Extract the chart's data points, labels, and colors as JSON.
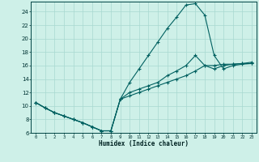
{
  "xlabel": "Humidex (Indice chaleur)",
  "bg_color": "#cef0e8",
  "grid_color": "#a8d8d0",
  "line_color": "#006060",
  "xlim": [
    -0.5,
    23.5
  ],
  "ylim": [
    6,
    25.5
  ],
  "xticks": [
    0,
    1,
    2,
    3,
    4,
    5,
    6,
    7,
    8,
    9,
    10,
    11,
    12,
    13,
    14,
    15,
    16,
    17,
    18,
    19,
    20,
    21,
    22,
    23
  ],
  "yticks": [
    6,
    8,
    10,
    12,
    14,
    16,
    18,
    20,
    22,
    24
  ],
  "line1_x": [
    0,
    1,
    2,
    3,
    4,
    5,
    6,
    7,
    8,
    9,
    10,
    11,
    12,
    13,
    14,
    15,
    16,
    17,
    18,
    19,
    20,
    21,
    22,
    23
  ],
  "line1_y": [
    10.5,
    9.7,
    9.0,
    8.5,
    8.0,
    7.5,
    6.9,
    6.3,
    6.3,
    11.0,
    13.5,
    15.5,
    17.5,
    19.5,
    21.5,
    23.2,
    25.0,
    25.2,
    23.5,
    17.5,
    15.5,
    16.0,
    16.2,
    16.3
  ],
  "line2_x": [
    0,
    1,
    2,
    3,
    4,
    5,
    6,
    7,
    8,
    9,
    10,
    11,
    12,
    13,
    14,
    15,
    16,
    17,
    18,
    19,
    20,
    21,
    22,
    23
  ],
  "line2_y": [
    10.5,
    9.7,
    9.0,
    8.5,
    8.0,
    7.5,
    6.9,
    6.3,
    6.3,
    11.0,
    11.5,
    12.0,
    12.5,
    13.0,
    13.5,
    14.0,
    14.5,
    15.2,
    16.0,
    16.0,
    16.2,
    16.2,
    16.3,
    16.3
  ],
  "line3_x": [
    0,
    1,
    2,
    3,
    4,
    5,
    6,
    7,
    8,
    9,
    10,
    11,
    12,
    13,
    14,
    15,
    16,
    17,
    18,
    19,
    20,
    21,
    22,
    23
  ],
  "line3_y": [
    10.5,
    9.7,
    9.0,
    8.5,
    8.0,
    7.5,
    6.9,
    6.3,
    6.3,
    11.0,
    12.0,
    12.5,
    13.0,
    13.5,
    14.5,
    15.2,
    16.0,
    17.5,
    16.0,
    15.5,
    16.0,
    16.2,
    16.3,
    16.5
  ]
}
